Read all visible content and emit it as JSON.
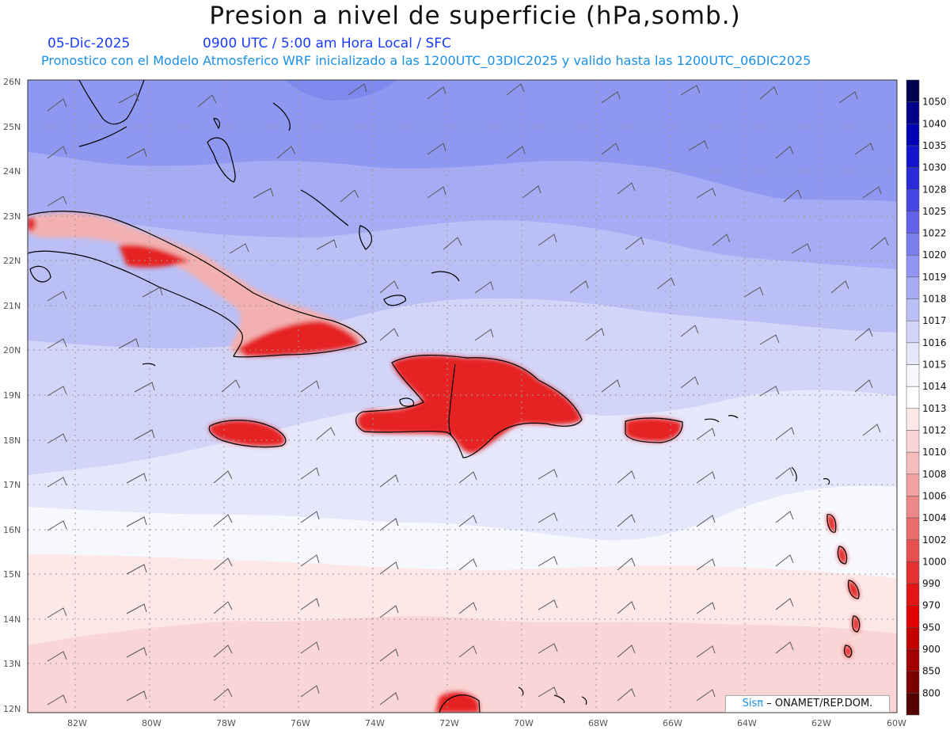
{
  "header": {
    "title": "Presion a nivel de superficie (hPa,somb.)",
    "date": "05-Dic-2025",
    "time_info": "0900 UTC / 5:00 am Hora Local / SFC",
    "model_info": "Pronostico con el Modelo Atmosferico WRF inicializado a las 1200UTC_03DIC2025 y valido hasta las  1200UTC_06DIC2025"
  },
  "map": {
    "lat_labels": [
      "26N",
      "25N",
      "24N",
      "23N",
      "22N",
      "21N",
      "20N",
      "19N",
      "18N",
      "17N",
      "16N",
      "15N",
      "14N",
      "13N",
      "12N"
    ],
    "lon_labels": [
      "82W",
      "80W",
      "78W",
      "76W",
      "74W",
      "72W",
      "70W",
      "68W",
      "66W",
      "64W",
      "62W",
      "60W"
    ],
    "colors": {
      "high_1019": "#8f98f0",
      "p_1018": "#a6acf4",
      "p_1017": "#babff6",
      "p_1016": "#d2d5f8",
      "p_1015": "#e6e7fb",
      "p_1014": "#f7f7fe",
      "p_1013": "#fde8e8",
      "p_1012": "#fad5d5",
      "land_low": "#e61c1c",
      "land_mid": "#f08a8a",
      "coast": "#000000",
      "grid": "#999999",
      "barb": "#555555"
    }
  },
  "colorbar": {
    "levels": [
      "1050",
      "1040",
      "1035",
      "1030",
      "1028",
      "1025",
      "1022",
      "1020",
      "1019",
      "1018",
      "1017",
      "1016",
      "1015",
      "1014",
      "1013",
      "1012",
      "1010",
      "1008",
      "1006",
      "1004",
      "1002",
      "1000",
      "990",
      "970",
      "950",
      "900",
      "850",
      "800"
    ],
    "colors": [
      "#000050",
      "#00008a",
      "#0000b4",
      "#1414cc",
      "#2a2ad8",
      "#4646e2",
      "#6262ea",
      "#7c80ee",
      "#9096f2",
      "#a6acf4",
      "#babff6",
      "#d2d5f8",
      "#e6e7fb",
      "#f7f7fe",
      "#ffffff",
      "#fde8e8",
      "#fad5d5",
      "#f6bcbc",
      "#f2a2a2",
      "#ee8888",
      "#ea6c6c",
      "#e65050",
      "#e43030",
      "#e21414",
      "#e00000",
      "#c40000",
      "#a20000",
      "#7a0000",
      "#520000"
    ]
  },
  "credit": {
    "sis": "Sisπ",
    "rest": "– ONAMET/REP.DOM."
  }
}
